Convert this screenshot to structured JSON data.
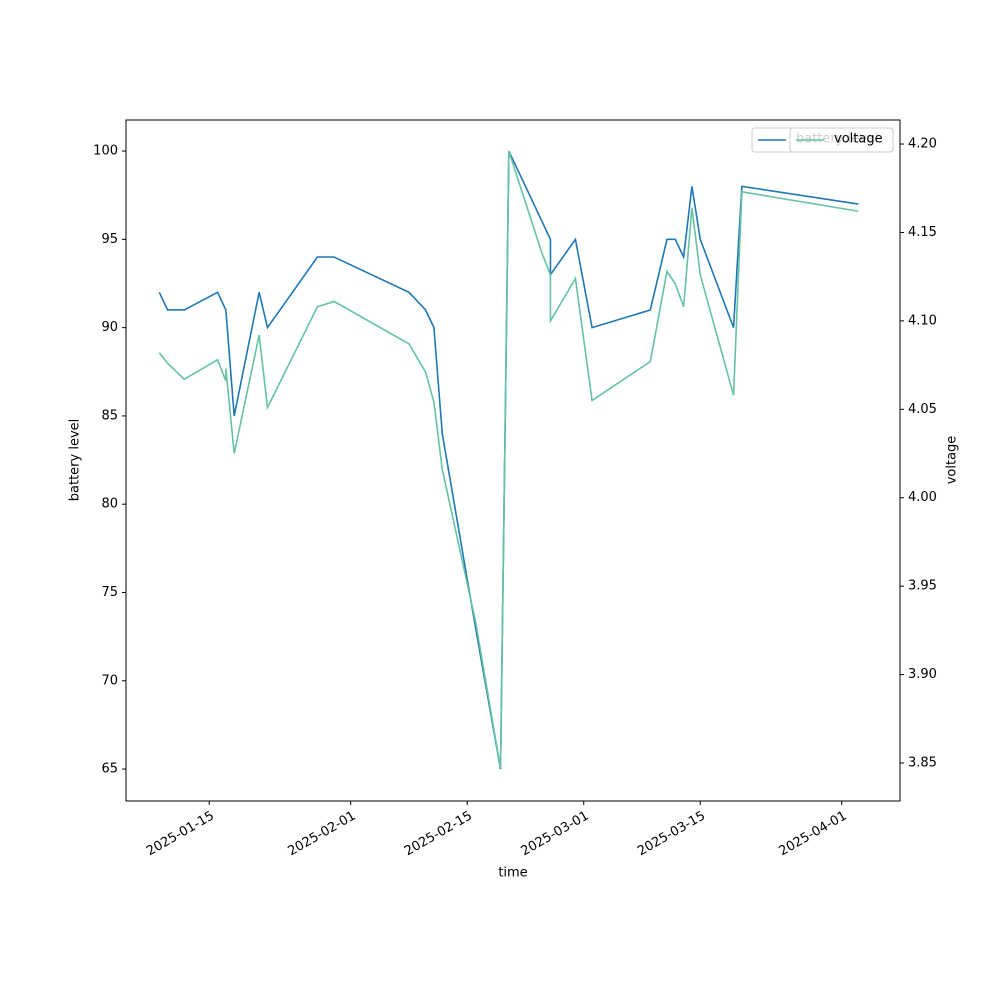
{
  "chart_data": {
    "type": "line",
    "x_label": "time",
    "y_label": "battery level",
    "y2_label": "voltage",
    "x": [
      "2025-01-09",
      "2025-01-10",
      "2025-01-12",
      "2025-01-16",
      "2025-01-17",
      "2025-01-17",
      "2025-01-18",
      "2025-01-21",
      "2025-01-22",
      "2025-01-28",
      "2025-01-30",
      "2025-02-08",
      "2025-02-10",
      "2025-02-11",
      "2025-02-12",
      "2025-02-16",
      "2025-02-19",
      "2025-02-20",
      "2025-02-24",
      "2025-02-25",
      "2025-02-25",
      "2025-02-28",
      "2025-03-02",
      "2025-03-09",
      "2025-03-11",
      "2025-03-12",
      "2025-03-13",
      "2025-03-14",
      "2025-03-15",
      "2025-03-19",
      "2025-03-20",
      "2025-04-03"
    ],
    "series": [
      {
        "name": "battery level",
        "color": "#1f77b4",
        "axis": "y",
        "values": [
          92,
          91,
          91,
          92,
          91,
          91,
          85,
          92,
          90,
          94,
          94,
          92,
          91,
          90,
          84,
          73,
          65,
          100,
          96,
          95,
          93,
          95,
          90,
          91,
          95,
          95,
          94,
          98,
          95,
          90,
          98,
          97
        ]
      },
      {
        "name": "voltage",
        "color": "#66c2a5",
        "axis": "y2",
        "values": [
          4.082,
          4.076,
          4.067,
          4.078,
          4.066,
          4.073,
          4.025,
          4.092,
          4.051,
          4.108,
          4.111,
          4.087,
          4.071,
          4.054,
          4.016,
          3.93,
          3.847,
          4.196,
          4.138,
          4.126,
          4.1,
          4.124,
          4.055,
          4.077,
          4.128,
          4.121,
          4.108,
          4.164,
          4.126,
          4.058,
          4.173,
          4.162
        ]
      }
    ],
    "xlim": [
      "2025-01-05",
      "2025-04-08"
    ],
    "xticks": [
      "2025-01-15",
      "2025-02-01",
      "2025-02-15",
      "2025-03-01",
      "2025-03-15",
      "2025-04-01"
    ],
    "ylim": [
      63.19,
      101.76
    ],
    "yticks": [
      65,
      70,
      75,
      80,
      85,
      90,
      95,
      100
    ],
    "y2lim": [
      3.8285,
      4.2136
    ],
    "y2ticks": [
      3.85,
      {
        "value": 3.9,
        "label": "3.90"
      },
      3.95,
      {
        "value": 4.0,
        "label": "4.00"
      },
      4.05,
      {
        "value": 4.1,
        "label": "4.10"
      },
      4.15,
      {
        "value": 4.2,
        "label": "4.20"
      }
    ],
    "legend": "upper right"
  }
}
